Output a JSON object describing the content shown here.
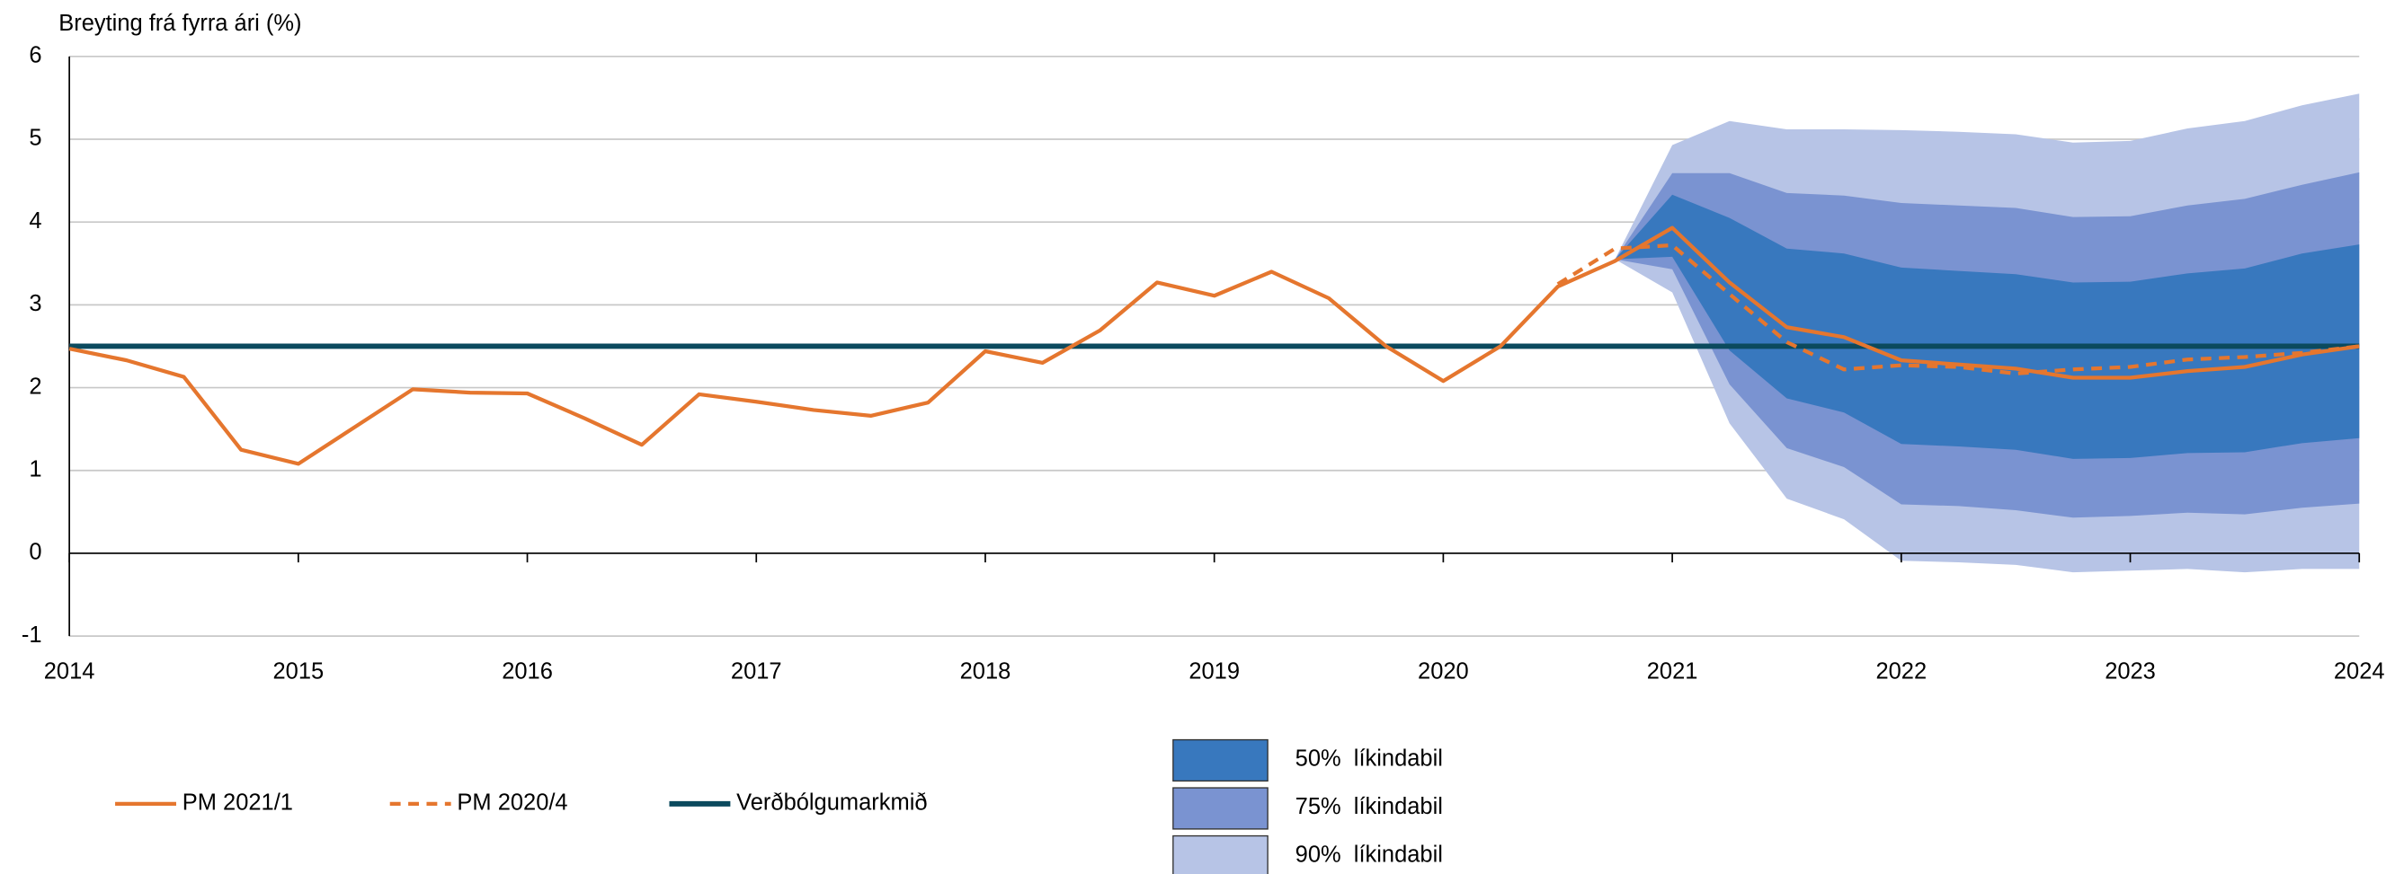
{
  "chart_data": {
    "type": "line",
    "y_label": "Breyting frá fyrra ári (%)",
    "xlim": [
      2014,
      2024
    ],
    "xticks": [
      2014,
      2015,
      2016,
      2017,
      2018,
      2019,
      2020,
      2021,
      2022,
      2023,
      2024
    ],
    "ylim": [
      -1,
      6
    ],
    "yticks": [
      -1,
      0,
      1,
      2,
      3,
      4,
      5,
      6
    ],
    "grid": true,
    "series": [
      {
        "name": "PM 2021/1",
        "color": "#e5762e",
        "style": "solid",
        "x": [
          2014,
          2014.25,
          2014.5,
          2014.75,
          2015,
          2015.25,
          2015.5,
          2015.75,
          2016,
          2016.25,
          2016.5,
          2016.75,
          2017,
          2017.25,
          2017.5,
          2017.75,
          2018,
          2018.25,
          2018.5,
          2018.75,
          2019,
          2019.25,
          2019.5,
          2019.75,
          2020,
          2020.25,
          2020.5,
          2020.75,
          2021,
          2021.25,
          2021.5,
          2021.75,
          2022,
          2022.25,
          2022.5,
          2022.75,
          2023,
          2023.25,
          2023.5,
          2023.75,
          2024
        ],
        "values": [
          2.47,
          2.33,
          2.13,
          1.25,
          1.08,
          1.53,
          1.98,
          1.94,
          1.93,
          1.63,
          1.31,
          1.92,
          1.83,
          1.73,
          1.66,
          1.82,
          2.44,
          2.3,
          2.69,
          3.27,
          3.11,
          3.4,
          3.08,
          2.5,
          2.08,
          2.5,
          3.22,
          3.53,
          3.93,
          3.27,
          2.73,
          2.61,
          2.33,
          2.28,
          2.23,
          2.12,
          2.12,
          2.2,
          2.25,
          2.4,
          2.5
        ]
      },
      {
        "name": "PM 2020/4",
        "color": "#e5762e",
        "style": "dashed",
        "x": [
          2020.5,
          2020.75,
          2021,
          2021.25,
          2021.5,
          2021.75,
          2022,
          2022.25,
          2022.5,
          2022.75,
          2023,
          2023.25,
          2023.5,
          2023.75,
          2024
        ],
        "values": [
          3.25,
          3.68,
          3.72,
          3.13,
          2.55,
          2.22,
          2.27,
          2.25,
          2.17,
          2.22,
          2.25,
          2.34,
          2.37,
          2.42,
          2.5
        ]
      },
      {
        "name": "Verðbólgumarkmið",
        "color": "#0b4a5e",
        "style": "solid",
        "x": [
          2014,
          2024
        ],
        "values": [
          2.5,
          2.5
        ]
      }
    ],
    "bands": [
      {
        "name": "50%  líkindabil",
        "color": "#3878be",
        "x": [
          2020.75,
          2021,
          2021.25,
          2021.5,
          2021.75,
          2022,
          2022.25,
          2022.5,
          2022.75,
          2023,
          2023.25,
          2023.5,
          2023.75,
          2024
        ],
        "lower": [
          3.55,
          3.58,
          2.45,
          1.87,
          1.7,
          1.32,
          1.29,
          1.25,
          1.14,
          1.15,
          1.21,
          1.22,
          1.33,
          1.39
        ],
        "upper": [
          3.55,
          4.33,
          4.05,
          3.68,
          3.62,
          3.45,
          3.41,
          3.37,
          3.27,
          3.28,
          3.38,
          3.44,
          3.62,
          3.73
        ]
      },
      {
        "name": "75%  líkindabil",
        "color": "#7a93d1",
        "x": [
          2020.75,
          2021,
          2021.25,
          2021.5,
          2021.75,
          2022,
          2022.25,
          2022.5,
          2022.75,
          2023,
          2023.25,
          2023.5,
          2023.75,
          2024
        ],
        "lower": [
          3.55,
          3.43,
          2.04,
          1.27,
          1.04,
          0.59,
          0.57,
          0.52,
          0.43,
          0.45,
          0.49,
          0.47,
          0.55,
          0.6
        ],
        "upper": [
          3.55,
          4.59,
          4.59,
          4.35,
          4.32,
          4.23,
          4.2,
          4.17,
          4.06,
          4.07,
          4.2,
          4.28,
          4.45,
          4.6
        ]
      },
      {
        "name": "90%  líkindabil",
        "color": "#b7c4e6",
        "x": [
          2020.75,
          2021,
          2021.25,
          2021.5,
          2021.75,
          2022,
          2022.25,
          2022.5,
          2022.75,
          2023,
          2023.25,
          2023.5,
          2023.75,
          2024
        ],
        "lower": [
          3.55,
          3.15,
          1.57,
          0.66,
          0.41,
          -0.09,
          -0.11,
          -0.14,
          -0.23,
          -0.21,
          -0.19,
          -0.23,
          -0.19,
          -0.19
        ],
        "upper": [
          3.55,
          4.93,
          5.22,
          5.12,
          5.12,
          5.11,
          5.09,
          5.06,
          4.96,
          4.98,
          5.13,
          5.22,
          5.41,
          5.55
        ]
      }
    ]
  }
}
